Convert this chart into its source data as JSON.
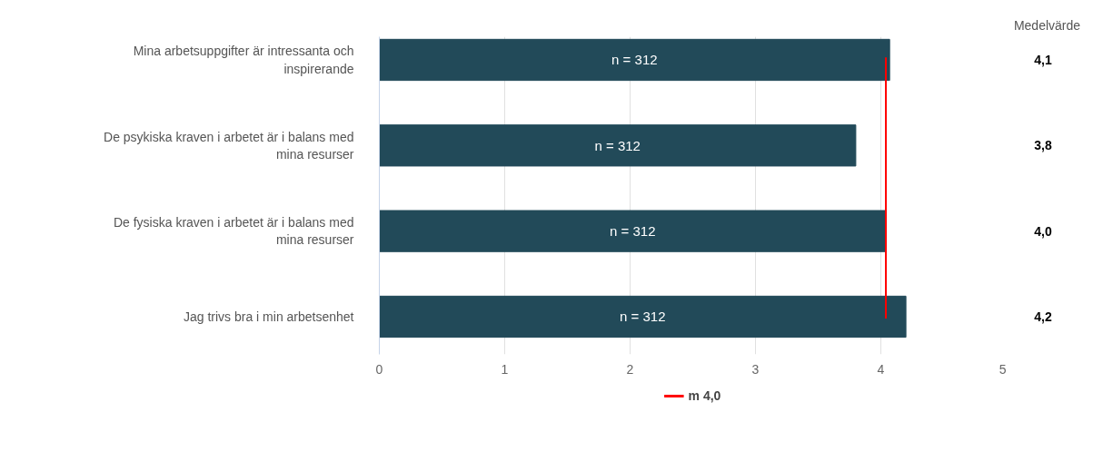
{
  "chart_data": {
    "type": "bar",
    "orientation": "horizontal",
    "categories": [
      "Mina arbetsuppgifter är intressanta och inspirerande",
      "De psykiska kraven i arbetet är i balans med mina resurser",
      "De fysiska kraven i arbetet är i balans med mina resurser",
      "Jag trivs bra i min arbetsenhet"
    ],
    "values": [
      4.07,
      3.8,
      4.04,
      4.2
    ],
    "color": "#224a59",
    "value_labels": [
      "4,1",
      "3,8",
      "4,0",
      "4,2"
    ],
    "annotations": [
      "Medelvärde",
      "n = 312",
      "n = 312",
      "n = 312",
      "n = 312"
    ],
    "ref_lines": [
      {
        "axis": "x",
        "value": 4.04,
        "label": "m 4,0",
        "color": "#ff0000"
      }
    ],
    "xlim": [
      0,
      5
    ],
    "xticks": [
      0,
      1,
      2,
      3,
      4,
      5
    ],
    "grid": "x",
    "legend": "bottom"
  }
}
